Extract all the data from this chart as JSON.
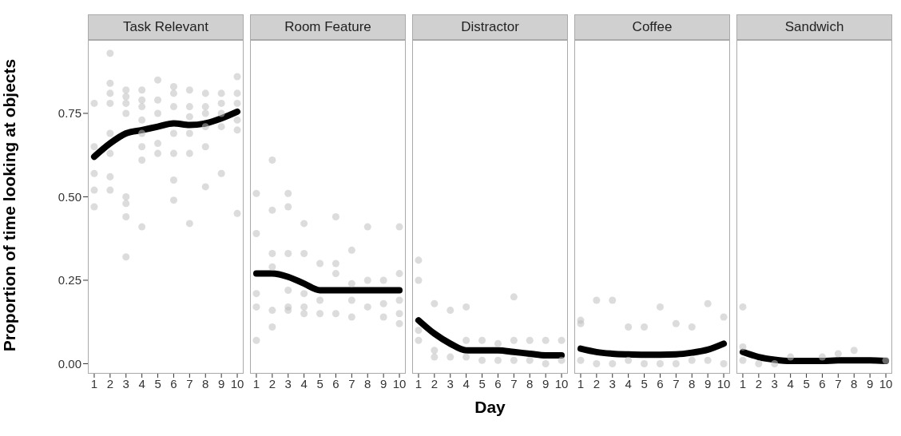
{
  "chart_data": [
    {
      "type": "scatter",
      "title": "Task Relevant",
      "ylabel": "Proportion of time looking at objects",
      "xlim": [
        0.6,
        10.4
      ],
      "xticks": [
        1,
        2,
        3,
        4,
        5,
        6,
        7,
        8,
        9,
        10
      ],
      "ylim": [
        -0.03,
        0.97
      ],
      "yticks": [
        {
          "value": 0,
          "label": "0.00"
        },
        {
          "value": 0.25,
          "label": "0.25"
        },
        {
          "value": 0.5,
          "label": "0.50"
        },
        {
          "value": 0.75,
          "label": "0.75"
        }
      ],
      "line_style": "solid",
      "series": [
        {
          "color": "#c0c0c0",
          "marker": "circle",
          "x": [
            1,
            1,
            1,
            1,
            1,
            2,
            2,
            2,
            2,
            2,
            2,
            2,
            2,
            3,
            3,
            3,
            3,
            3,
            3,
            3,
            3,
            4,
            4,
            4,
            4,
            4,
            4,
            4,
            4,
            5,
            5,
            5,
            5,
            5,
            6,
            6,
            6,
            6,
            6,
            6,
            6,
            7,
            7,
            7,
            7,
            7,
            7,
            8,
            8,
            8,
            8,
            8,
            8,
            9,
            9,
            9,
            9,
            9,
            10,
            10,
            10,
            10,
            10,
            10
          ],
          "values": [
            0.78,
            0.65,
            0.57,
            0.52,
            0.47,
            0.93,
            0.84,
            0.81,
            0.78,
            0.69,
            0.63,
            0.56,
            0.52,
            0.82,
            0.8,
            0.78,
            0.75,
            0.5,
            0.48,
            0.44,
            0.32,
            0.82,
            0.79,
            0.77,
            0.73,
            0.69,
            0.65,
            0.61,
            0.41,
            0.85,
            0.79,
            0.75,
            0.66,
            0.63,
            0.83,
            0.81,
            0.77,
            0.69,
            0.63,
            0.55,
            0.49,
            0.82,
            0.77,
            0.74,
            0.69,
            0.63,
            0.42,
            0.81,
            0.77,
            0.75,
            0.71,
            0.65,
            0.53,
            0.81,
            0.78,
            0.75,
            0.71,
            0.57,
            0.86,
            0.81,
            0.78,
            0.73,
            0.7,
            0.45
          ]
        },
        {
          "type": "line",
          "color": "#000000",
          "marker": "none",
          "x": [
            1,
            2,
            3,
            4,
            5,
            6,
            7,
            8,
            9,
            10
          ],
          "values": [
            0.62,
            0.66,
            0.69,
            0.7,
            0.71,
            0.72,
            0.715,
            0.72,
            0.735,
            0.755
          ]
        }
      ]
    },
    {
      "type": "scatter",
      "title": "Room Feature",
      "xlim": [
        0.6,
        10.4
      ],
      "xticks": [
        1,
        2,
        3,
        4,
        5,
        6,
        7,
        8,
        9,
        10
      ],
      "ylim": [
        -0.03,
        0.97
      ],
      "tick_labels": "x",
      "line_style": "solid",
      "series": [
        {
          "color": "#c0c0c0",
          "marker": "circle",
          "x": [
            1,
            1,
            1,
            1,
            1,
            2,
            2,
            2,
            2,
            2,
            2,
            3,
            3,
            3,
            3,
            3,
            3,
            4,
            4,
            4,
            4,
            4,
            5,
            5,
            5,
            6,
            6,
            6,
            6,
            7,
            7,
            7,
            7,
            8,
            8,
            8,
            9,
            9,
            9,
            10,
            10,
            10,
            10,
            10
          ],
          "values": [
            0.51,
            0.39,
            0.21,
            0.17,
            0.07,
            0.61,
            0.46,
            0.33,
            0.29,
            0.16,
            0.11,
            0.51,
            0.47,
            0.33,
            0.22,
            0.17,
            0.16,
            0.42,
            0.33,
            0.21,
            0.17,
            0.15,
            0.3,
            0.19,
            0.15,
            0.44,
            0.3,
            0.27,
            0.15,
            0.34,
            0.24,
            0.19,
            0.14,
            0.41,
            0.25,
            0.17,
            0.25,
            0.18,
            0.14,
            0.41,
            0.27,
            0.19,
            0.15,
            0.12
          ]
        },
        {
          "type": "line",
          "color": "#000000",
          "marker": "none",
          "x": [
            1,
            2,
            3,
            4,
            5,
            6,
            7,
            8,
            9,
            10
          ],
          "values": [
            0.27,
            0.27,
            0.26,
            0.24,
            0.22,
            0.22,
            0.22,
            0.22,
            0.22,
            0.22
          ]
        }
      ]
    },
    {
      "type": "scatter",
      "title": "Distractor",
      "xlabel": "Day",
      "xlim": [
        0.6,
        10.4
      ],
      "xticks": [
        1,
        2,
        3,
        4,
        5,
        6,
        7,
        8,
        9,
        10
      ],
      "ylim": [
        -0.03,
        0.97
      ],
      "tick_labels": "x",
      "line_style": "solid",
      "series": [
        {
          "color": "#c0c0c0",
          "marker": "circle",
          "x": [
            1,
            1,
            1,
            1,
            2,
            2,
            2,
            3,
            3,
            4,
            4,
            4,
            5,
            5,
            6,
            6,
            7,
            7,
            7,
            8,
            8,
            9,
            9,
            10,
            10
          ],
          "values": [
            0.31,
            0.25,
            0.1,
            0.07,
            0.18,
            0.04,
            0.02,
            0.16,
            0.02,
            0.17,
            0.07,
            0.02,
            0.07,
            0.01,
            0.06,
            0.01,
            0.2,
            0.07,
            0.01,
            0.07,
            0.01,
            0.07,
            0,
            0.07,
            0.01
          ]
        },
        {
          "type": "line",
          "color": "#000000",
          "marker": "none",
          "x": [
            1,
            2,
            3,
            4,
            5,
            6,
            7,
            8,
            9,
            10
          ],
          "values": [
            0.13,
            0.09,
            0.06,
            0.04,
            0.04,
            0.04,
            0.035,
            0.03,
            0.025,
            0.025
          ]
        }
      ]
    },
    {
      "type": "scatter",
      "title": "Coffee",
      "xlim": [
        0.6,
        10.4
      ],
      "xticks": [
        1,
        2,
        3,
        4,
        5,
        6,
        7,
        8,
        9,
        10
      ],
      "ylim": [
        -0.03,
        0.97
      ],
      "tick_labels": "x",
      "line_style": "solid",
      "series": [
        {
          "color": "#c0c0c0",
          "marker": "circle",
          "x": [
            1,
            1,
            1,
            2,
            2,
            3,
            3,
            4,
            4,
            5,
            5,
            6,
            6,
            7,
            7,
            8,
            8,
            9,
            9,
            10,
            10
          ],
          "values": [
            0.13,
            0.12,
            0.01,
            0.19,
            0,
            0.19,
            0,
            0.11,
            0.01,
            0.11,
            0,
            0.17,
            0,
            0.12,
            0,
            0.11,
            0.01,
            0.18,
            0.01,
            0.14,
            0
          ]
        },
        {
          "type": "line",
          "color": "#000000",
          "marker": "none",
          "x": [
            1,
            2,
            3,
            4,
            5,
            6,
            7,
            8,
            9,
            10
          ],
          "values": [
            0.045,
            0.035,
            0.03,
            0.028,
            0.027,
            0.027,
            0.028,
            0.033,
            0.042,
            0.06
          ]
        }
      ]
    },
    {
      "type": "scatter",
      "title": "Sandwich",
      "xlim": [
        0.6,
        10.4
      ],
      "xticks": [
        1,
        2,
        3,
        4,
        5,
        6,
        7,
        8,
        9,
        10
      ],
      "ylim": [
        -0.03,
        0.97
      ],
      "tick_labels": "x",
      "line_style": "solid",
      "series": [
        {
          "color": "#c0c0c0",
          "marker": "circle",
          "x": [
            1,
            1,
            1,
            2,
            3,
            4,
            5,
            6,
            7,
            8,
            9,
            10
          ],
          "values": [
            0.17,
            0.05,
            0.01,
            0,
            0,
            0.02,
            null,
            0.02,
            0.03,
            0.04,
            null,
            0.01
          ]
        },
        {
          "type": "line",
          "color": "#000000",
          "marker": "none",
          "x": [
            1,
            2,
            3,
            4,
            5,
            6,
            7,
            8,
            9,
            10
          ],
          "values": [
            0.035,
            0.02,
            0.012,
            0.008,
            0.008,
            0.008,
            0.01,
            0.01,
            0.01,
            0.008
          ]
        }
      ]
    }
  ]
}
